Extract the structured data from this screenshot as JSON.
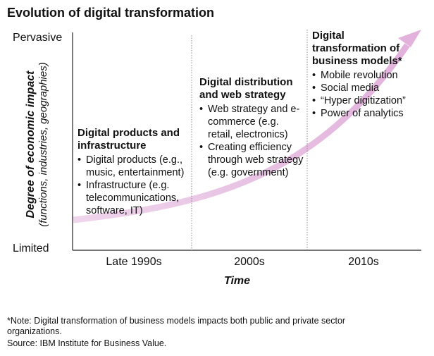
{
  "title": "Evolution of digital transformation",
  "y_axis": {
    "top_label": "Pervasive",
    "bottom_label": "Limited",
    "label": "Degree of economic impact",
    "sublabel": "(functions, industries, geographies)"
  },
  "x_axis": {
    "label": "Time",
    "ticks": [
      "Late 1990s",
      "2000s",
      "2010s"
    ]
  },
  "stages": [
    {
      "heading": "Digital products and infrastructure",
      "bullets": [
        "Digital products (e.g., music, entertainment)",
        "Infrastructure (e.g. telecommunications, software, IT)"
      ]
    },
    {
      "heading": "Digital distribution and web strategy",
      "bullets": [
        "Web strategy and e-commerce (e.g. retail, electronics)",
        "Creating efficiency through web strategy (e.g. government)"
      ]
    },
    {
      "heading": "Digital transformation of business models*",
      "bullets": [
        "Mobile revolution",
        "Social media",
        "“Hyper digitization”",
        "Power of analytics"
      ]
    }
  ],
  "footnotes": {
    "note": "*Note: Digital transformation of business models impacts both public and private sector organizations.",
    "source": "Source: IBM Institute for Business Value."
  },
  "colors": {
    "arrow": "#e7c3e2",
    "axis": "#222222",
    "divider": "#888888"
  }
}
